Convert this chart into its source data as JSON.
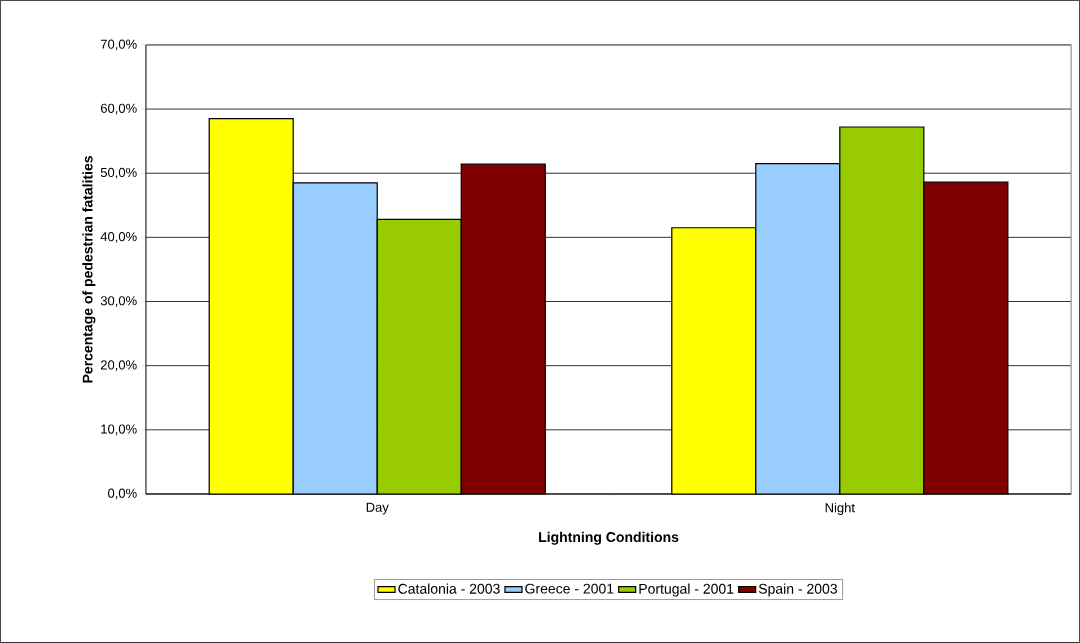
{
  "chart_data": {
    "type": "bar",
    "xlabel": "Lightning Conditions",
    "ylabel": "Percentage of pedestrian fatalities",
    "categories": [
      "Day",
      "Night"
    ],
    "series": [
      {
        "name": "Catalonia - 2003",
        "color": "#ffff00",
        "values": [
          58.5,
          41.5
        ]
      },
      {
        "name": "Greece - 2001",
        "color": "#99ccff",
        "values": [
          48.5,
          51.5
        ]
      },
      {
        "name": "Portugal - 2001",
        "color": "#99cc00",
        "values": [
          42.8,
          57.2
        ]
      },
      {
        "name": "Spain - 2003",
        "color": "#800000",
        "values": [
          51.4,
          48.6
        ]
      }
    ],
    "ylim": [
      0,
      70
    ],
    "yticks": [
      {
        "value": 0,
        "label": "0,0%"
      },
      {
        "value": 10,
        "label": "10,0%"
      },
      {
        "value": 20,
        "label": "20,0%"
      },
      {
        "value": 30,
        "label": "30,0%"
      },
      {
        "value": 40,
        "label": "40,0%"
      },
      {
        "value": 50,
        "label": "50,0%"
      },
      {
        "value": 60,
        "label": "60,0%"
      },
      {
        "value": 70,
        "label": "70,0%"
      }
    ],
    "grid": "y",
    "legend": "bottom"
  }
}
